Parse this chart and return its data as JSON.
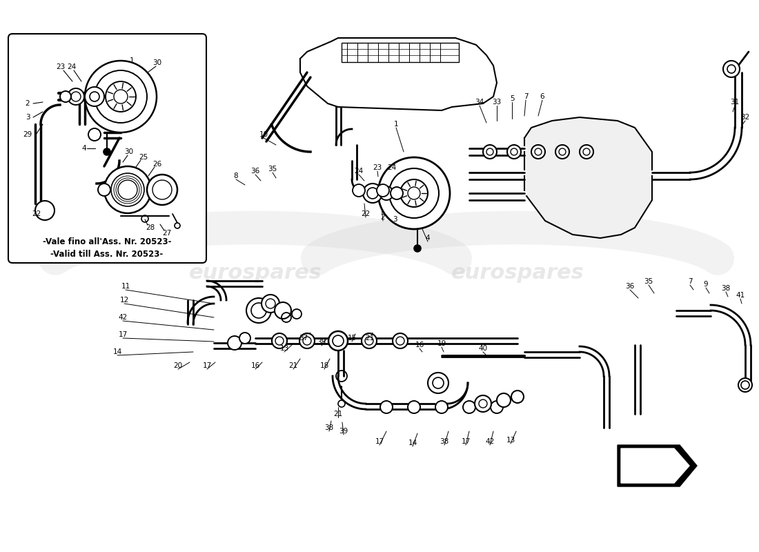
{
  "bg_color": "#ffffff",
  "line_color": "#000000",
  "fig_width": 11.0,
  "fig_height": 8.0,
  "dpi": 100,
  "inset_text_it": "-Vale fino all'Ass. Nr. 20523-",
  "inset_text_en": "-Valid till Ass. Nr. 20523-",
  "watermark1": "eurospares",
  "watermark2": "eurospares",
  "wm_color": "#cccccc",
  "wm_alpha": 0.5,
  "label_fontsize": 7.5
}
